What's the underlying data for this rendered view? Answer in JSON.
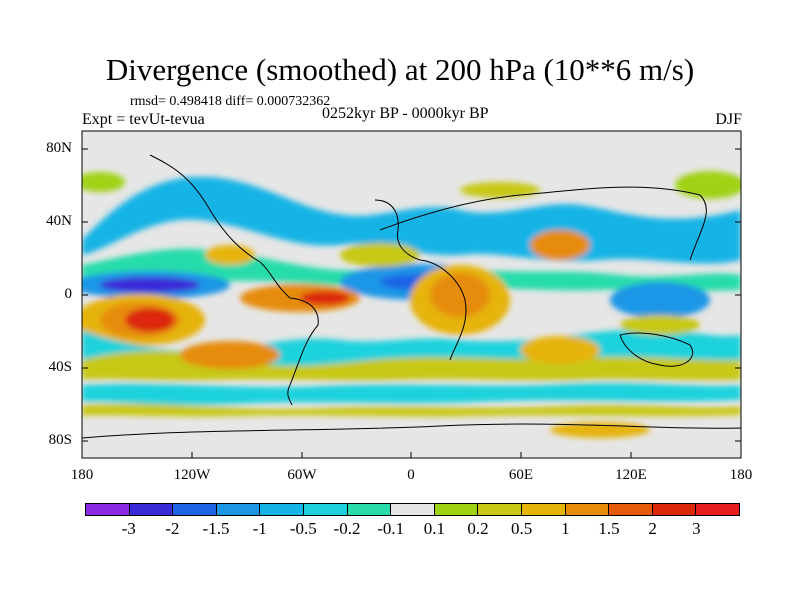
{
  "title": "Divergence (smoothed) at 200 hPa (10**6 m/s)",
  "stats": "rmsd= 0.498418 diff= 0.000732362",
  "experiment": "Expt = tevUt-tevua",
  "period": "0252kyr BP - 0000kyr BP",
  "season": "DJF",
  "lat_labels": [
    "80N",
    "40N",
    "0",
    "40S",
    "80S"
  ],
  "lon_labels": [
    "180",
    "120W",
    "60W",
    "0",
    "60E",
    "120E",
    "180"
  ],
  "colorbar": {
    "labels": [
      "-3",
      "-2",
      "-1.5",
      "-1",
      "-0.5",
      "-0.2",
      "-0.1",
      "0.1",
      "0.2",
      "0.5",
      "1",
      "1.5",
      "2",
      "3"
    ],
    "colors": [
      "#8a2be2",
      "#3a2bd8",
      "#1e64e6",
      "#1e96e6",
      "#14b4e6",
      "#1ed2dc",
      "#28dcaa",
      "#e6e6e6",
      "#a0d214",
      "#c8c814",
      "#e6b40a",
      "#e68c0a",
      "#e65a0a",
      "#dc280a",
      "#e61e1e"
    ]
  }
}
